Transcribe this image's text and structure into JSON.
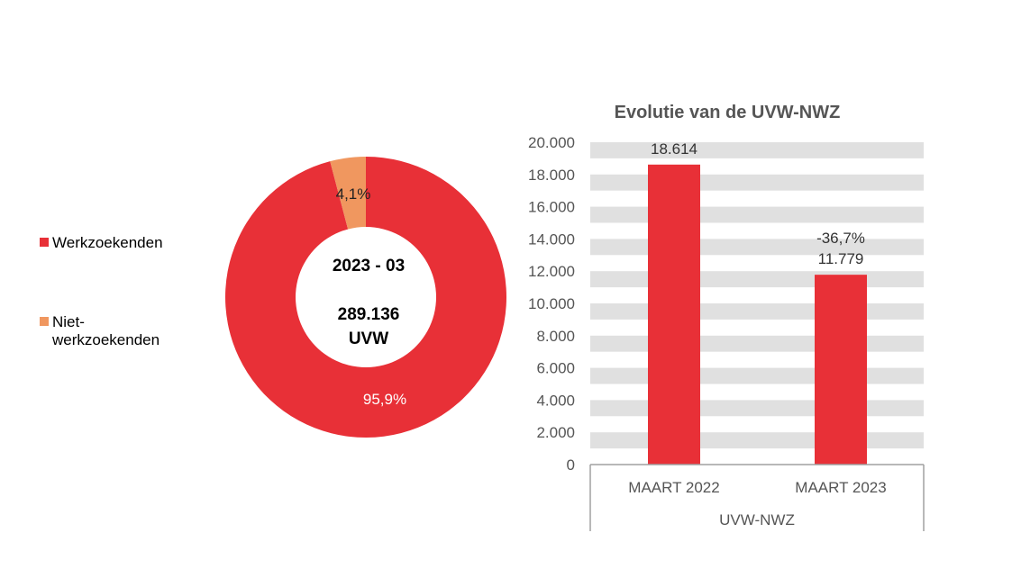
{
  "chart_data": [
    {
      "type": "pie",
      "variant": "donut",
      "center_label": {
        "period": "2023 - 03",
        "total": "289.136",
        "unit": "UVW"
      },
      "slices": [
        {
          "name": "Werkzoekenden",
          "value": 95.9,
          "label": "95,9%",
          "color": "#e83037",
          "label_color": "#ffffff"
        },
        {
          "name": "Niet-werkzoekenden",
          "value": 4.1,
          "label": "4,1%",
          "color": "#f0975f",
          "label_color": "#222222"
        }
      ],
      "legend": {
        "placement": "left",
        "entries": [
          "Werkzoekenden",
          "Niet-werkzoekenden"
        ],
        "entry_lines": [
          [
            "Werkzoekenden"
          ],
          [
            "Niet-",
            "werkzoekenden"
          ]
        ]
      }
    },
    {
      "type": "bar",
      "title": "Evolutie van de UVW-NWZ",
      "categories": [
        "MAART 2022",
        "MAART 2023"
      ],
      "group_label": "UVW-NWZ",
      "values": [
        18614,
        11779
      ],
      "data_labels": [
        "18.614",
        "11.779"
      ],
      "change_labels": [
        "",
        "-36,7%"
      ],
      "bar_color": "#e83037",
      "ylim": [
        0,
        20000
      ],
      "yticks": [
        0,
        2000,
        4000,
        6000,
        8000,
        10000,
        12000,
        14000,
        16000,
        18000,
        20000
      ],
      "ytick_labels": [
        "0",
        "2.000",
        "4.000",
        "6.000",
        "8.000",
        "10.000",
        "12.000",
        "14.000",
        "16.000",
        "18.000",
        "20.000"
      ],
      "grid": "alternating bands",
      "grid_color": "#e0e0e0"
    }
  ]
}
